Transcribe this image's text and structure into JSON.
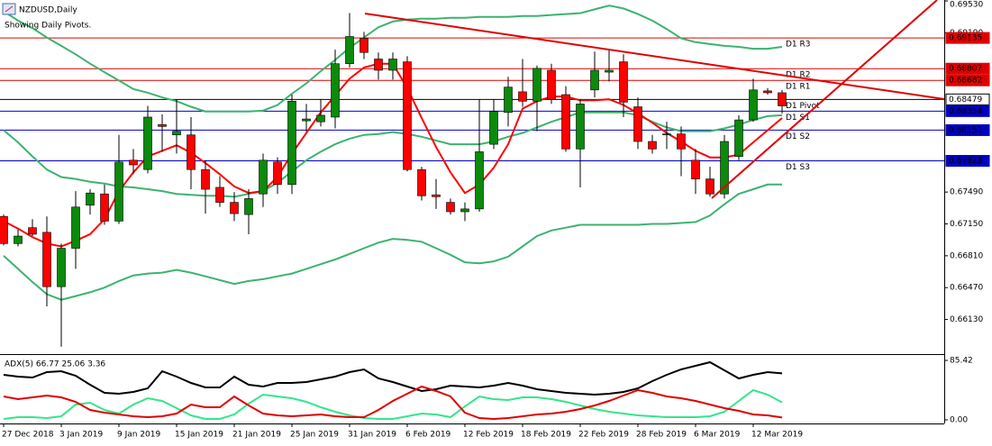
{
  "chart_data": [
    {
      "type": "candlestick",
      "title": "NZDUSD,Daily",
      "subtitle": "Showing Daily Pivots.",
      "categories": [
        "27 Dec 2018",
        null,
        null,
        null,
        "3 Jan 2019",
        null,
        null,
        null,
        "9 Jan 2019",
        null,
        null,
        null,
        "15 Jan 2019",
        null,
        null,
        null,
        "21 Jan 2019",
        null,
        null,
        null,
        "25 Jan 2019",
        null,
        null,
        null,
        "31 Jan 2019",
        null,
        null,
        null,
        "6 Feb 2019",
        null,
        null,
        null,
        "12 Feb 2019",
        null,
        null,
        null,
        "18 Feb 2019",
        null,
        null,
        null,
        "22 Feb 2019",
        null,
        null,
        null,
        "28 Feb 2019",
        null,
        null,
        null,
        "6 Mar 2019",
        null,
        null,
        null,
        "12 Mar 2019",
        null,
        null
      ],
      "open": [
        0.6723,
        0.6694,
        0.6711,
        0.6706,
        0.6648,
        0.6689,
        0.6735,
        0.6747,
        0.6718,
        0.6783,
        0.6773,
        0.6821,
        0.681,
        0.681,
        0.6773,
        0.6754,
        0.6738,
        0.6725,
        0.6747,
        0.6781,
        0.6757,
        0.6825,
        0.6824,
        0.6829,
        0.6886,
        0.6913,
        0.6891,
        0.6879,
        0.6888,
        0.6773,
        0.6746,
        0.6738,
        0.6728,
        0.6731,
        0.68,
        0.6834,
        0.6856,
        0.6846,
        0.6879,
        0.6853,
        0.6795,
        0.6858,
        0.6877,
        0.6888,
        0.684,
        0.6803,
        0.681,
        0.6811,
        0.6783,
        0.6763,
        0.6747,
        0.6787,
        0.6826,
        0.6857,
        0.6855
      ],
      "high": [
        0.6725,
        0.6709,
        0.672,
        0.6723,
        0.6694,
        0.675,
        0.6752,
        0.6757,
        0.681,
        0.6795,
        0.6841,
        0.6832,
        0.6848,
        0.6829,
        0.6783,
        0.6766,
        0.6749,
        0.6752,
        0.679,
        0.6786,
        0.6853,
        0.6843,
        0.6848,
        0.6901,
        0.694,
        0.692,
        0.6898,
        0.6898,
        0.6894,
        0.6776,
        0.6763,
        0.6742,
        0.6738,
        0.6848,
        0.6848,
        0.6872,
        0.6891,
        0.6884,
        0.6886,
        0.6862,
        0.6848,
        0.6899,
        0.6901,
        0.6896,
        0.685,
        0.681,
        0.6824,
        0.6819,
        0.6795,
        0.6776,
        0.681,
        0.6831,
        0.687,
        0.686,
        0.6858
      ],
      "low": [
        0.6692,
        0.6691,
        0.6702,
        0.6627,
        0.6584,
        0.6667,
        0.6725,
        0.6714,
        0.6715,
        0.6768,
        0.6769,
        0.6792,
        0.679,
        0.6752,
        0.6726,
        0.6733,
        0.6718,
        0.6704,
        0.6733,
        0.6747,
        0.6747,
        0.6814,
        0.6819,
        0.6817,
        0.6882,
        0.6891,
        0.6869,
        0.6869,
        0.6771,
        0.674,
        0.6731,
        0.6725,
        0.6718,
        0.6728,
        0.6795,
        0.6819,
        0.684,
        0.6814,
        0.6843,
        0.6792,
        0.6754,
        0.685,
        0.6867,
        0.6829,
        0.6795,
        0.679,
        0.6795,
        0.6766,
        0.6747,
        0.6744,
        0.6742,
        0.6783,
        0.6824,
        0.6853,
        0.6833
      ],
      "close": [
        0.6694,
        0.6702,
        0.6704,
        0.6648,
        0.6689,
        0.6733,
        0.6748,
        0.6718,
        0.6781,
        0.6778,
        0.6829,
        0.6819,
        0.6814,
        0.6773,
        0.6752,
        0.6738,
        0.6726,
        0.6742,
        0.6783,
        0.6757,
        0.6846,
        0.6827,
        0.6831,
        0.6886,
        0.6915,
        0.6898,
        0.6879,
        0.6891,
        0.6773,
        0.6745,
        0.6744,
        0.6728,
        0.6731,
        0.6792,
        0.6835,
        0.6861,
        0.6846,
        0.6881,
        0.6848,
        0.6795,
        0.6843,
        0.6879,
        0.6879,
        0.6845,
        0.6803,
        0.6795,
        0.6811,
        0.6795,
        0.6763,
        0.6747,
        0.6803,
        0.6826,
        0.6858,
        0.6855,
        0.6841
      ],
      "up_color": "#0b8a0b",
      "down_color": "#ff0000",
      "lines": [
        {
          "color": "#3cb371",
          "values": [
            0.6942,
            0.6932,
            0.6924,
            0.6914,
            0.6905,
            0.6896,
            0.6886,
            0.6877,
            0.6868,
            0.6859,
            0.6855,
            0.685,
            0.6846,
            0.684,
            0.6835,
            0.6835,
            0.6835,
            0.6835,
            0.6836,
            0.6842,
            0.6854,
            0.6865,
            0.6878,
            0.689,
            0.6903,
            0.6914,
            0.6925,
            0.6931,
            0.6933,
            0.6934,
            0.6934,
            0.6935,
            0.6935,
            0.6936,
            0.6936,
            0.6936,
            0.6937,
            0.6937,
            0.6938,
            0.6939,
            0.694,
            0.6944,
            0.6948,
            0.6945,
            0.6939,
            0.6932,
            0.6923,
            0.6913,
            0.6909,
            0.6907,
            0.6905,
            0.6904,
            0.6902,
            0.6902,
            0.6904
          ]
        },
        {
          "color": "#3cb371",
          "values": [
            0.6815,
            0.6802,
            0.6787,
            0.6773,
            0.6765,
            0.6763,
            0.676,
            0.6758,
            0.6755,
            0.6754,
            0.6752,
            0.675,
            0.6747,
            0.6746,
            0.6745,
            0.6745,
            0.6744,
            0.6747,
            0.675,
            0.6759,
            0.6771,
            0.6783,
            0.6792,
            0.68,
            0.6806,
            0.681,
            0.6811,
            0.6813,
            0.6811,
            0.6808,
            0.6804,
            0.68,
            0.68,
            0.68,
            0.6803,
            0.6808,
            0.6812,
            0.6818,
            0.6824,
            0.6829,
            0.6834,
            0.6834,
            0.6834,
            0.6834,
            0.6831,
            0.6824,
            0.6818,
            0.6814,
            0.6814,
            0.6814,
            0.6817,
            0.6821,
            0.6826,
            0.683,
            0.6831
          ]
        },
        {
          "color": "#3cb371",
          "values": [
            0.6681,
            0.6667,
            0.6653,
            0.664,
            0.6634,
            0.6638,
            0.6642,
            0.6647,
            0.6654,
            0.666,
            0.6662,
            0.6663,
            0.6666,
            0.6663,
            0.6659,
            0.6655,
            0.6651,
            0.6654,
            0.6656,
            0.6659,
            0.6662,
            0.6667,
            0.6672,
            0.6677,
            0.6683,
            0.6689,
            0.6695,
            0.6699,
            0.6698,
            0.6696,
            0.6689,
            0.6682,
            0.6674,
            0.6673,
            0.6675,
            0.668,
            0.6691,
            0.6702,
            0.6708,
            0.6711,
            0.6714,
            0.6714,
            0.6714,
            0.6714,
            0.6714,
            0.6715,
            0.6715,
            0.6716,
            0.6717,
            0.6724,
            0.6736,
            0.6747,
            0.6752,
            0.6757,
            0.6757
          ]
        },
        {
          "color": "#ff0000",
          "values": [
            0.6718,
            0.671,
            0.6701,
            0.6694,
            0.6691,
            0.6697,
            0.6704,
            0.672,
            0.675,
            0.677,
            0.6787,
            0.6793,
            0.6799,
            0.6791,
            0.678,
            0.6768,
            0.6755,
            0.6748,
            0.675,
            0.6765,
            0.679,
            0.6812,
            0.6834,
            0.6852,
            0.687,
            0.6882,
            0.6886,
            0.6886,
            0.686,
            0.6828,
            0.6797,
            0.677,
            0.6748,
            0.6757,
            0.6775,
            0.68,
            0.6838,
            0.6846,
            0.6851,
            0.6851,
            0.6847,
            0.6847,
            0.6848,
            0.6842,
            0.6833,
            0.6823,
            0.6812,
            0.6803,
            0.6793,
            0.6786,
            0.6786,
            0.6789,
            0.6802,
            0.6815,
            0.6828
          ]
        }
      ],
      "levels": [
        {
          "label": "D1 R3",
          "value": 0.69135,
          "color": "#e00000"
        },
        {
          "label": "D1 R2",
          "value": 0.68807,
          "color": "#e00000"
        },
        {
          "label": "D1 R1",
          "value": 0.68682,
          "color": "#e00000"
        },
        {
          "label": "D1 Pivot",
          "value": 0.68479,
          "color": "#000000"
        },
        {
          "label": "D1 S1",
          "value": 0.68354,
          "color": "#0000c0"
        },
        {
          "label": "D1 S2",
          "value": 0.68151,
          "color": "#0000c0"
        },
        {
          "label": "D1 S3",
          "value": 0.67823,
          "color": "#0000c0"
        }
      ],
      "ylim": [
        0.6577,
        0.6954
      ],
      "yticks": [
        {
          "value": 0.6953,
          "label": "0.69530"
        },
        {
          "value": 0.6919,
          "label": "0.69190"
        },
        {
          "value": 0.6749,
          "label": "0.67490"
        },
        {
          "value": 0.6715,
          "label": "0.67150"
        },
        {
          "value": 0.6681,
          "label": "0.66810"
        },
        {
          "value": 0.6647,
          "label": "0.66470"
        },
        {
          "value": 0.6613,
          "label": "0.66130"
        }
      ]
    },
    {
      "type": "line",
      "title": "ADX(5) 66.77 25.06 3.36",
      "series": [
        {
          "color": "#000000",
          "values": [
            64.7,
            62.1,
            60.8,
            68.6,
            69.9,
            63.4,
            50.5,
            38.8,
            37.5,
            40.1,
            45.3,
            69.9,
            62.1,
            53.1,
            46.6,
            46.6,
            62.1,
            50.5,
            47.9,
            53.1,
            53.1,
            54.3,
            58.2,
            62.1,
            68.6,
            72.5,
            59.5,
            54.3,
            47.9,
            41.4,
            44.0,
            49.2,
            47.9,
            46.6,
            49.2,
            53.1,
            49.2,
            44.0,
            41.4,
            38.8,
            37.5,
            36.2,
            37.5,
            40.1,
            45.3,
            55.6,
            64.7,
            72.5,
            77.6,
            82.8,
            71.2,
            59.5,
            64.7,
            68.6,
            66.77
          ]
        },
        {
          "color": "#32e68c",
          "values": [
            1.3,
            3.9,
            3.9,
            2.6,
            5.2,
            22.0,
            24.6,
            14.2,
            9.1,
            22.0,
            31.1,
            27.2,
            16.8,
            6.5,
            1.3,
            1.3,
            7.8,
            23.3,
            36.2,
            33.6,
            31.1,
            25.9,
            18.1,
            11.6,
            6.5,
            2.6,
            1.3,
            1.3,
            5.2,
            9.1,
            7.8,
            3.9,
            19.4,
            33.6,
            29.8,
            28.5,
            32.4,
            32.4,
            29.8,
            25.9,
            20.7,
            15.5,
            11.6,
            9.1,
            6.5,
            5.2,
            3.9,
            3.9,
            3.9,
            5.2,
            11.6,
            27.2,
            42.7,
            36.2,
            25.06
          ]
        },
        {
          "color": "#e00000",
          "values": [
            33.6,
            29.8,
            32.4,
            34.9,
            32.4,
            25.9,
            14.2,
            10.4,
            7.8,
            5.2,
            3.9,
            5.2,
            9.1,
            22.0,
            18.1,
            18.1,
            33.6,
            20.7,
            9.1,
            6.5,
            5.2,
            6.5,
            7.8,
            5.2,
            3.9,
            3.9,
            14.2,
            27.2,
            37.5,
            47.9,
            41.4,
            33.6,
            10.4,
            2.6,
            1.3,
            2.6,
            5.2,
            7.8,
            9.1,
            11.6,
            15.5,
            20.7,
            27.2,
            34.9,
            42.7,
            38.8,
            33.6,
            31.1,
            27.2,
            22.0,
            16.8,
            12.9,
            7.8,
            6.5,
            3.36
          ]
        }
      ],
      "ylim": [
        0,
        85.42
      ],
      "yticks": [
        85.42,
        {
          "value": 0,
          "label": "0.00"
        }
      ]
    }
  ]
}
